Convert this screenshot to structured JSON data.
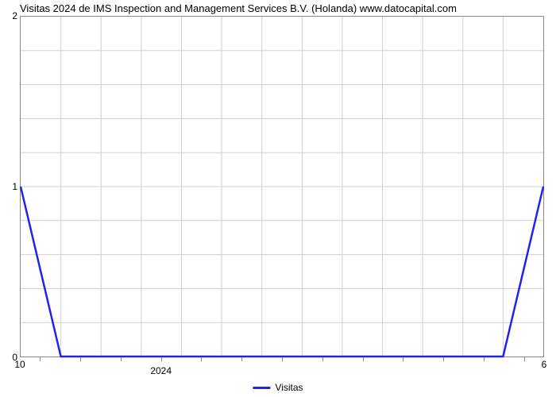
{
  "chart": {
    "type": "line",
    "title": "Visitas 2024 de IMS Inspection and Management Services B.V. (Holanda) www.datocapital.com",
    "title_fontsize": 13,
    "title_color": "#000000",
    "background_color": "#ffffff",
    "plot_border_color": "#888888",
    "grid_color": "#d0d0d0",
    "y_axis": {
      "min": 0,
      "max": 2,
      "major_ticks": [
        0,
        1,
        2
      ],
      "minor_step": 0.2,
      "label_fontsize": 12
    },
    "x_axis": {
      "n_bins": 13,
      "left_label": "10",
      "right_label": "6",
      "center_label": "2024",
      "center_label_bin": 3,
      "label_fontsize": 12
    },
    "series": {
      "name": "Visitas",
      "color": "#2222ee",
      "line_width": 2.5,
      "x": [
        0,
        1,
        2,
        3,
        4,
        5,
        6,
        7,
        8,
        9,
        10,
        11,
        12,
        13
      ],
      "y": [
        1,
        0,
        0,
        0,
        0,
        0,
        0,
        0,
        0,
        0,
        0,
        0,
        0,
        1
      ]
    },
    "legend": {
      "label": "Visitas",
      "swatch_color": "#2222ee"
    }
  }
}
